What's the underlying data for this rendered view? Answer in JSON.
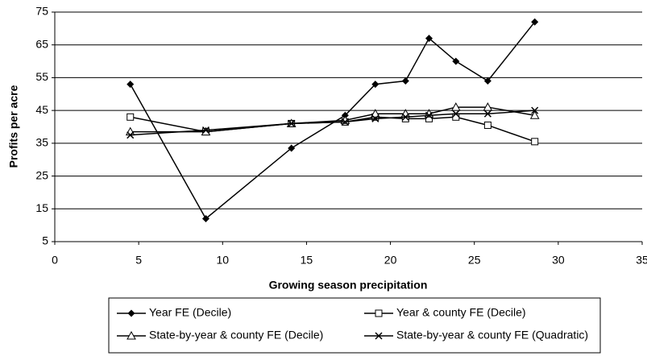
{
  "chart_data": {
    "type": "line",
    "xlabel": "Growing season precipitation",
    "ylabel": "Profits per acre",
    "xlim": [
      0,
      35
    ],
    "xticks": [
      0,
      5,
      10,
      15,
      20,
      25,
      30,
      35
    ],
    "ylim": [
      5,
      75
    ],
    "yticks": [
      5,
      15,
      25,
      35,
      45,
      55,
      65,
      75
    ],
    "grid": true,
    "legend": "bottom",
    "x": [
      4.5,
      9,
      14.1,
      17.3,
      19.1,
      20.9,
      22.3,
      23.9,
      25.8,
      28.6
    ],
    "series": [
      {
        "name": "Year FE (Decile)",
        "color": "#000000",
        "marker": "diamond",
        "values": [
          53,
          12,
          33.5,
          43.5,
          53,
          54,
          67,
          60,
          54,
          72
        ]
      },
      {
        "name": "Year & county FE (Decile)",
        "color": "#000000",
        "marker": "square",
        "values": [
          43,
          38.5,
          41,
          41.5,
          43,
          42.5,
          42.5,
          43,
          40.5,
          35.5
        ]
      },
      {
        "name": "State-by-year & county FE (Decile)",
        "color": "#000000",
        "marker": "triangle",
        "values": [
          38.5,
          38.5,
          41,
          42,
          44,
          44,
          44,
          46,
          46,
          43.5
        ]
      },
      {
        "name": "State-by-year & county FE (Quadratic)",
        "color": "#000000",
        "marker": "cross",
        "values": [
          37.5,
          39,
          41,
          41.5,
          42.5,
          43,
          43.5,
          44,
          44,
          45
        ]
      }
    ]
  }
}
